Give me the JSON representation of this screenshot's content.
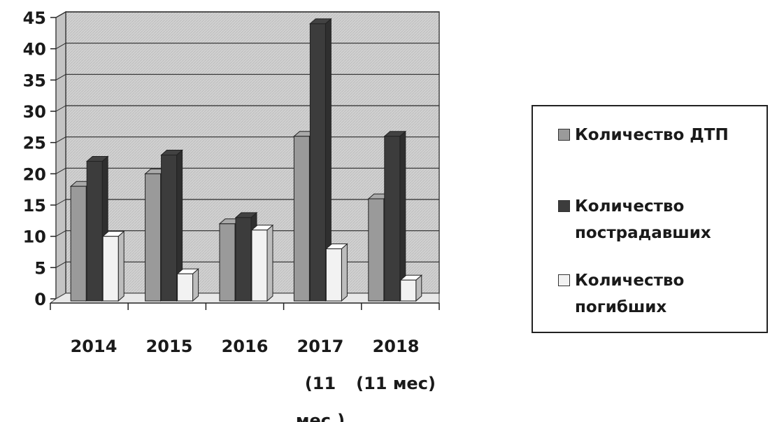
{
  "chart_data": {
    "type": "bar",
    "title": "",
    "xlabel": "",
    "ylabel": "",
    "ylim": [
      0,
      45
    ],
    "yticks": [
      "0",
      "5",
      "10",
      "15",
      "20",
      "25",
      "30",
      "35",
      "40",
      "45"
    ],
    "categories": [
      "2014",
      "2015",
      "2016",
      "2017 (11 мес.)",
      "2018 (11 мес)"
    ],
    "category_label_lines": [
      [
        "2014"
      ],
      [
        "2015"
      ],
      [
        "2016"
      ],
      [
        "2017",
        "(11",
        "мес.)"
      ],
      [
        "2018",
        "(11 мес)"
      ]
    ],
    "series": [
      {
        "name": "Количество ДТП",
        "values": [
          18,
          20,
          12,
          26,
          16
        ],
        "color": "#9a9a9a"
      },
      {
        "name": "Количество пострадавших",
        "values": [
          22,
          23,
          13,
          44,
          26
        ],
        "color": "#3c3c3c"
      },
      {
        "name": "Количество погибших",
        "values": [
          10,
          4,
          11,
          8,
          3
        ],
        "color": "#f2f2f2"
      }
    ],
    "legend_position": "right",
    "grid": true,
    "style": "3d-clustered-columns"
  },
  "legend": {
    "items": [
      {
        "label": "Количество ДТП",
        "lines": [
          "Количество ДТП"
        ]
      },
      {
        "label": "Количество пострадавших",
        "lines": [
          "Количество",
          "пострадавших"
        ]
      },
      {
        "label": "Количество погибших",
        "lines": [
          "Количество",
          "погибших"
        ]
      }
    ]
  }
}
